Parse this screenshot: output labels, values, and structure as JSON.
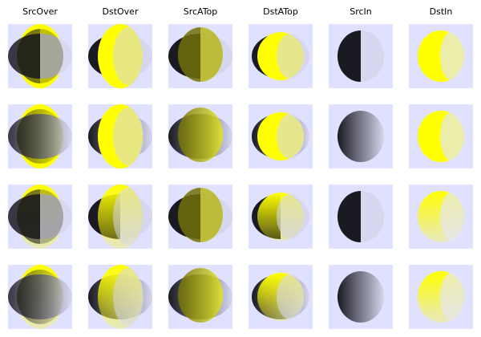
{
  "modes": [
    "SrcOver",
    "DstOver",
    "SrcATop",
    "DstATop",
    "SrcIn",
    "DstIn"
  ],
  "row_count": 4,
  "colors": {
    "cell_background": "#e0e0ff",
    "yellow": "#ffff00",
    "ellipse_dark": "#1a1a22",
    "ellipse_light": "#d6d6ef",
    "dark_overlay": "#141414"
  }
}
